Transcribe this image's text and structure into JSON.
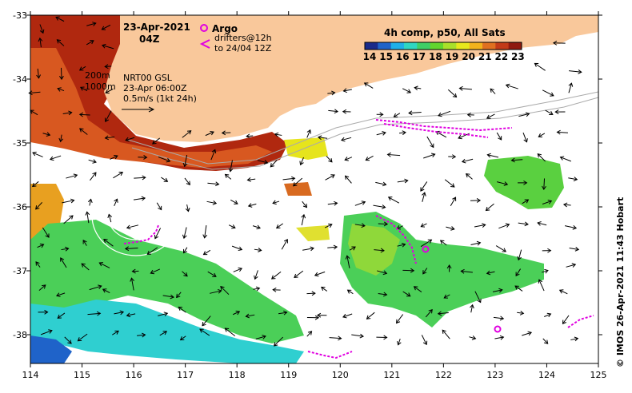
{
  "title": {
    "date": "23-Apr-2021",
    "time": "04Z"
  },
  "legend": {
    "argo_label": "Argo",
    "drifters_line1": "drifters@12h",
    "drifters_line2": "to 24/04 12Z",
    "colorbar_title": "4h comp, p50, All Sats",
    "colorbar_ticks": [
      "14",
      "15",
      "16",
      "17",
      "18",
      "19",
      "20",
      "21",
      "22",
      "23"
    ]
  },
  "bathymetry": {
    "contour_200": "200m",
    "contour_1000": "1000m"
  },
  "current_info": {
    "line1": "NRT00 GSL",
    "line2": "23-Apr 06:00Z",
    "line3": "0.5m/s (1kt 24h)"
  },
  "axes": {
    "x_ticks": [
      "114",
      "115",
      "116",
      "117",
      "118",
      "119",
      "120",
      "121",
      "122",
      "123",
      "124",
      "125"
    ],
    "y_ticks": [
      "-33",
      "-34",
      "-35",
      "-36",
      "-37",
      "-38"
    ]
  },
  "credit": "© IMOS 26-Apr-2021 11:43 Hobart",
  "colors": {
    "land": "#f9c89b",
    "magenta": "#e000e0",
    "colormap": [
      "#1a2a8a",
      "#1f63c9",
      "#1fb0e8",
      "#2fd6c2",
      "#3fcf66",
      "#62d62e",
      "#a9e02a",
      "#e8e81c",
      "#f2b21c",
      "#e07020",
      "#c23a18",
      "#8f1a10"
    ]
  }
}
